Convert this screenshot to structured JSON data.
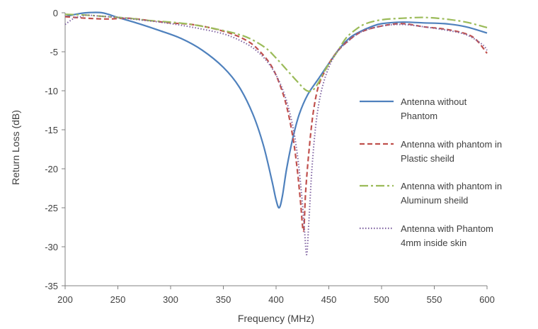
{
  "chart_data": {
    "type": "line",
    "title": "",
    "xlabel": "Frequency (MHz)",
    "ylabel": "Return Loss (dB)",
    "xlim": [
      200,
      600
    ],
    "ylim": [
      -35,
      0
    ],
    "x_ticks": [
      "200",
      "250",
      "300",
      "350",
      "400",
      "450",
      "500",
      "550",
      "600"
    ],
    "y_ticks": [
      "0",
      "-5",
      "-10",
      "-15",
      "-20",
      "-25",
      "-30",
      "-35"
    ],
    "grid": false,
    "legend_position": "right",
    "series": [
      {
        "name_lines": [
          "Antenna without",
          "Phantom"
        ],
        "color": "#4f81bd",
        "dash": "solid",
        "points": [
          [
            200,
            -0.5
          ],
          [
            210,
            -0.2
          ],
          [
            220,
            0
          ],
          [
            235,
            0
          ],
          [
            250,
            -0.6
          ],
          [
            270,
            -1.4
          ],
          [
            290,
            -2.3
          ],
          [
            310,
            -3.3
          ],
          [
            330,
            -4.8
          ],
          [
            350,
            -7
          ],
          [
            365,
            -9.5
          ],
          [
            378,
            -13
          ],
          [
            388,
            -17
          ],
          [
            396,
            -21.5
          ],
          [
            400,
            -24
          ],
          [
            403,
            -25
          ],
          [
            406,
            -23.5
          ],
          [
            410,
            -20
          ],
          [
            416,
            -16
          ],
          [
            422,
            -13
          ],
          [
            430,
            -10.5
          ],
          [
            440,
            -8.5
          ],
          [
            450,
            -6.5
          ],
          [
            460,
            -4.6
          ],
          [
            470,
            -3.2
          ],
          [
            480,
            -2.4
          ],
          [
            490,
            -1.8
          ],
          [
            500,
            -1.4
          ],
          [
            520,
            -1.2
          ],
          [
            540,
            -1.3
          ],
          [
            560,
            -1.4
          ],
          [
            580,
            -1.8
          ],
          [
            600,
            -2.6
          ]
        ]
      },
      {
        "name_lines": [
          "Antenna with phantom in",
          "Plastic sheild"
        ],
        "color": "#c0504d",
        "dash": "dashed",
        "points": [
          [
            200,
            -0.5
          ],
          [
            210,
            -0.6
          ],
          [
            220,
            -0.7
          ],
          [
            240,
            -0.8
          ],
          [
            260,
            -0.7
          ],
          [
            280,
            -1
          ],
          [
            300,
            -1.3
          ],
          [
            320,
            -1.5
          ],
          [
            340,
            -2
          ],
          [
            360,
            -2.8
          ],
          [
            375,
            -3.8
          ],
          [
            385,
            -5
          ],
          [
            395,
            -6.7
          ],
          [
            403,
            -9
          ],
          [
            410,
            -12
          ],
          [
            416,
            -16
          ],
          [
            420,
            -20
          ],
          [
            423,
            -24
          ],
          [
            426,
            -28
          ],
          [
            428,
            -23
          ],
          [
            431,
            -18
          ],
          [
            435,
            -13
          ],
          [
            440,
            -9.5
          ],
          [
            447,
            -7.3
          ],
          [
            455,
            -5.5
          ],
          [
            465,
            -4
          ],
          [
            480,
            -2.5
          ],
          [
            500,
            -1.7
          ],
          [
            520,
            -1.4
          ],
          [
            540,
            -1.8
          ],
          [
            560,
            -2.1
          ],
          [
            580,
            -2.7
          ],
          [
            590,
            -3.5
          ],
          [
            600,
            -5.2
          ]
        ]
      },
      {
        "name_lines": [
          "Antenna with phantom in",
          "Aluminum sheild"
        ],
        "color": "#9bbb59",
        "dash": "dashdot",
        "points": [
          [
            200,
            -0.2
          ],
          [
            220,
            -0.3
          ],
          [
            240,
            -0.5
          ],
          [
            260,
            -0.7
          ],
          [
            280,
            -1
          ],
          [
            300,
            -1.2
          ],
          [
            320,
            -1.5
          ],
          [
            340,
            -2
          ],
          [
            360,
            -2.6
          ],
          [
            375,
            -3.3
          ],
          [
            390,
            -4.5
          ],
          [
            400,
            -5.8
          ],
          [
            410,
            -7.3
          ],
          [
            420,
            -8.8
          ],
          [
            428,
            -9.9
          ],
          [
            434,
            -10
          ],
          [
            440,
            -9
          ],
          [
            448,
            -7
          ],
          [
            458,
            -5
          ],
          [
            466,
            -3.3
          ],
          [
            475,
            -2.2
          ],
          [
            485,
            -1.4
          ],
          [
            500,
            -0.9
          ],
          [
            520,
            -0.7
          ],
          [
            540,
            -0.6
          ],
          [
            560,
            -0.8
          ],
          [
            580,
            -1.2
          ],
          [
            600,
            -1.9
          ]
        ]
      },
      {
        "name_lines": [
          "Antenna with Phantom",
          "4mm inside skin"
        ],
        "color": "#8064a2",
        "dash": "dotted",
        "points": [
          [
            200,
            -1.5
          ],
          [
            205,
            -1
          ],
          [
            210,
            -0.6
          ],
          [
            215,
            -0.5
          ],
          [
            220,
            -0.3
          ],
          [
            230,
            -0.4
          ],
          [
            250,
            -0.6
          ],
          [
            270,
            -0.9
          ],
          [
            290,
            -1.2
          ],
          [
            310,
            -1.6
          ],
          [
            330,
            -2.1
          ],
          [
            350,
            -2.7
          ],
          [
            365,
            -3.5
          ],
          [
            378,
            -4.5
          ],
          [
            390,
            -6
          ],
          [
            400,
            -8
          ],
          [
            408,
            -10.5
          ],
          [
            415,
            -14
          ],
          [
            420,
            -18
          ],
          [
            424,
            -23
          ],
          [
            427,
            -28
          ],
          [
            429,
            -31
          ],
          [
            431,
            -27
          ],
          [
            434,
            -20
          ],
          [
            438,
            -14
          ],
          [
            443,
            -10
          ],
          [
            450,
            -7
          ],
          [
            458,
            -5
          ],
          [
            468,
            -3.7
          ],
          [
            480,
            -2.5
          ],
          [
            500,
            -1.7
          ],
          [
            520,
            -1.5
          ],
          [
            540,
            -1.8
          ],
          [
            560,
            -2.2
          ],
          [
            580,
            -2.8
          ],
          [
            595,
            -4
          ],
          [
            600,
            -4.8
          ]
        ]
      }
    ]
  }
}
